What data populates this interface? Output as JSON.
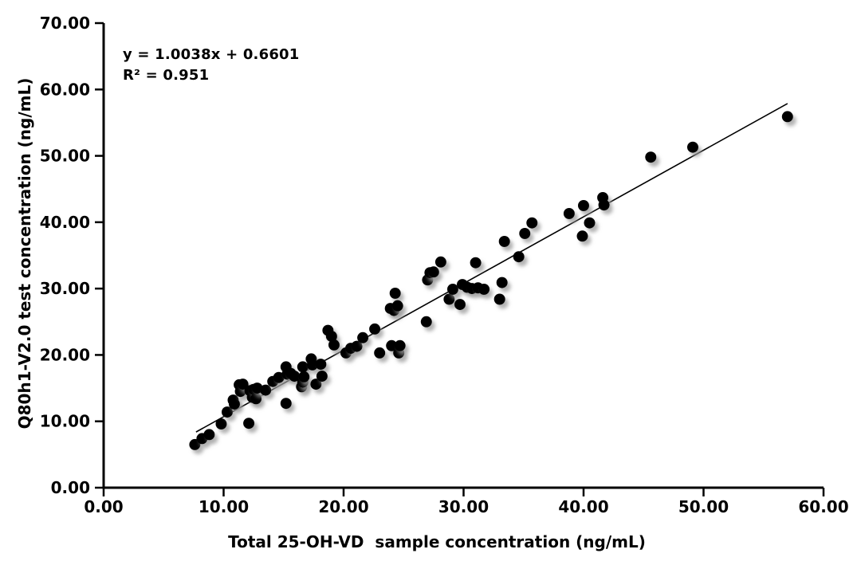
{
  "figure": {
    "background_color": "#ffffff",
    "text_color": "#000000"
  },
  "chart_data": {
    "type": "scatter",
    "title": "",
    "xlabel": "Total 25-OH-VD  sample concentration (ng/mL)",
    "ylabel": "Q80h1-V2.0 test concentration (ng/mL)",
    "xlim": [
      0,
      60
    ],
    "ylim": [
      0,
      70
    ],
    "xticks": [
      "0.00",
      "10.00",
      "20.00",
      "30.00",
      "40.00",
      "50.00",
      "60.00"
    ],
    "yticks": [
      "0.00",
      "10.00",
      "20.00",
      "30.00",
      "40.00",
      "50.00",
      "60.00",
      "70.00"
    ],
    "grid": false,
    "legend_position": "none",
    "annotations": [
      "y = 1.0038x + 0.6601",
      "R² = 0.951"
    ],
    "marker": {
      "shape": "circle",
      "color": "#060606",
      "radius_px": 7,
      "shadow_color": "#9a9a9a"
    },
    "trendline": {
      "slope": 1.0038,
      "intercept": 0.6601,
      "x_range": [
        7.7,
        57.0
      ],
      "color": "#000000"
    },
    "points": [
      [
        7.6,
        6.5
      ],
      [
        8.2,
        7.4
      ],
      [
        8.8,
        8.0
      ],
      [
        9.8,
        9.6
      ],
      [
        10.3,
        11.4
      ],
      [
        10.8,
        13.2
      ],
      [
        10.9,
        12.6
      ],
      [
        11.3,
        15.5
      ],
      [
        11.4,
        14.5
      ],
      [
        11.6,
        15.6
      ],
      [
        12.1,
        9.7
      ],
      [
        12.2,
        14.6
      ],
      [
        12.4,
        13.6
      ],
      [
        12.5,
        14.8
      ],
      [
        12.7,
        13.4
      ],
      [
        12.8,
        15.0
      ],
      [
        13.5,
        14.7
      ],
      [
        14.1,
        16.0
      ],
      [
        14.6,
        16.6
      ],
      [
        15.2,
        12.7
      ],
      [
        15.2,
        18.2
      ],
      [
        15.3,
        17.1
      ],
      [
        15.6,
        17.2
      ],
      [
        15.9,
        16.8
      ],
      [
        16.5,
        15.2
      ],
      [
        16.6,
        15.9
      ],
      [
        16.6,
        18.2
      ],
      [
        16.7,
        16.7
      ],
      [
        17.3,
        19.4
      ],
      [
        17.4,
        18.5
      ],
      [
        17.7,
        15.6
      ],
      [
        18.1,
        18.6
      ],
      [
        18.2,
        16.8
      ],
      [
        18.7,
        23.7
      ],
      [
        19.0,
        22.8
      ],
      [
        19.2,
        21.5
      ],
      [
        20.2,
        20.3
      ],
      [
        20.6,
        21.0
      ],
      [
        21.1,
        21.3
      ],
      [
        21.6,
        22.6
      ],
      [
        22.6,
        23.9
      ],
      [
        23.0,
        20.3
      ],
      [
        23.9,
        27.0
      ],
      [
        24.0,
        21.4
      ],
      [
        24.2,
        26.7
      ],
      [
        24.3,
        29.3
      ],
      [
        24.5,
        27.4
      ],
      [
        24.6,
        20.3
      ],
      [
        24.7,
        21.4
      ],
      [
        26.9,
        25.0
      ],
      [
        27.0,
        31.3
      ],
      [
        27.2,
        32.4
      ],
      [
        27.5,
        32.5
      ],
      [
        28.1,
        34.0
      ],
      [
        28.8,
        28.4
      ],
      [
        29.1,
        29.9
      ],
      [
        29.7,
        27.6
      ],
      [
        29.9,
        30.6
      ],
      [
        30.3,
        30.2
      ],
      [
        30.7,
        30.0
      ],
      [
        31.0,
        33.9
      ],
      [
        31.2,
        30.1
      ],
      [
        31.7,
        29.9
      ],
      [
        33.0,
        28.4
      ],
      [
        33.2,
        30.9
      ],
      [
        33.4,
        37.1
      ],
      [
        34.6,
        34.8
      ],
      [
        35.1,
        38.3
      ],
      [
        35.7,
        39.9
      ],
      [
        38.8,
        41.3
      ],
      [
        39.9,
        37.9
      ],
      [
        40.0,
        42.5
      ],
      [
        40.5,
        39.9
      ],
      [
        41.6,
        43.7
      ],
      [
        41.7,
        42.6
      ],
      [
        45.6,
        49.8
      ],
      [
        49.1,
        51.3
      ],
      [
        57.0,
        55.9
      ]
    ]
  }
}
